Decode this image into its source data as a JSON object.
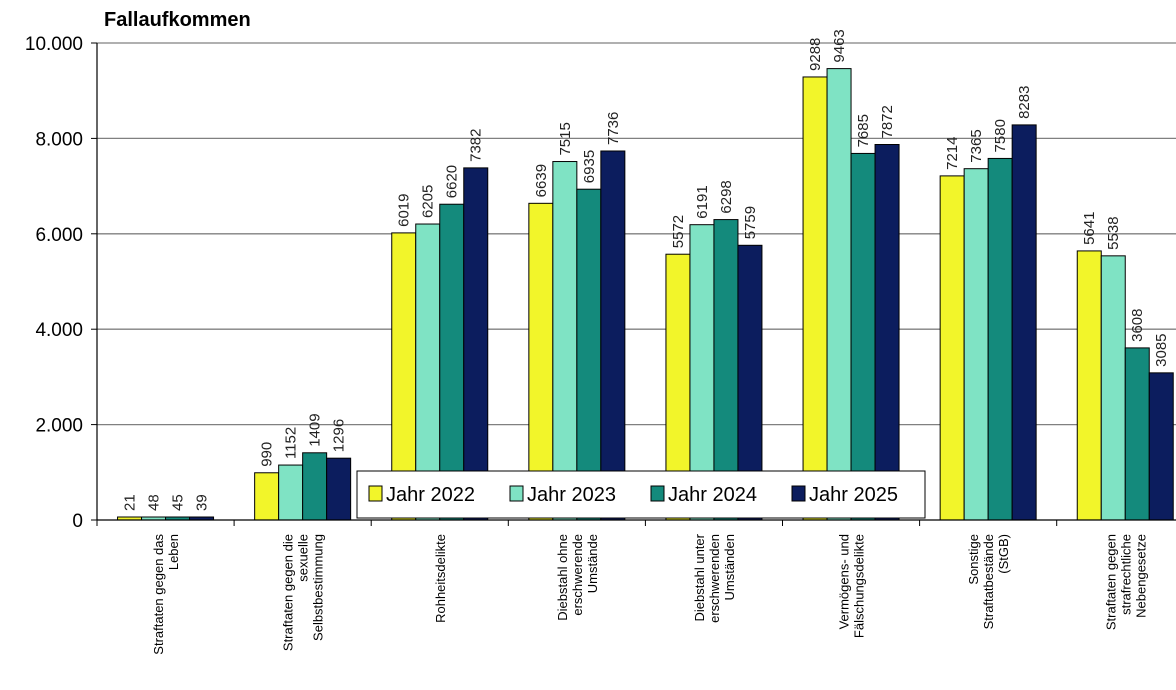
{
  "chart_data": {
    "type": "bar",
    "ylabel": "Fallaufkommen",
    "ylim": [
      0,
      10000
    ],
    "yticks": [
      0,
      2000,
      4000,
      6000,
      8000,
      10000
    ],
    "ytick_labels": [
      "0",
      "2.000",
      "4.000",
      "6.000",
      "8.000",
      "10.000"
    ],
    "grid": "horizontal",
    "legend_position": "bottom-center",
    "categories": [
      [
        "Straftaten gegen das",
        "Leben"
      ],
      [
        "Straftaten gegen die",
        "sexuelle",
        "Selbstbestimmung"
      ],
      [
        "Rohheitsdelikte"
      ],
      [
        "Diebstahl ohne",
        "erschwerende",
        "Umstände"
      ],
      [
        "Diebstahl unter",
        "erschwerenden",
        "Umständen"
      ],
      [
        "Vermögens- und",
        "Fälschungsdelikte"
      ],
      [
        "Sonstige",
        "Straftatbestände",
        "(StGB)"
      ],
      [
        "Straftaten gegen",
        "strafrechtliche",
        "Nebengesetze"
      ]
    ],
    "series": [
      {
        "name": "Jahr 2022",
        "color": "#f2f52a",
        "values": [
          21,
          990,
          6019,
          6639,
          5572,
          9288,
          7214,
          5641
        ]
      },
      {
        "name": "Jahr 2023",
        "color": "#7fe3c4",
        "values": [
          48,
          1152,
          6205,
          7515,
          6191,
          9463,
          7365,
          5538
        ]
      },
      {
        "name": "Jahr 2024",
        "color": "#148a7c",
        "values": [
          45,
          1409,
          6620,
          6935,
          6298,
          7685,
          7580,
          3608
        ]
      },
      {
        "name": "Jahr 2025",
        "color": "#0c1d5e",
        "values": [
          39,
          1296,
          7382,
          7736,
          5759,
          7872,
          8283,
          3085
        ]
      }
    ]
  }
}
